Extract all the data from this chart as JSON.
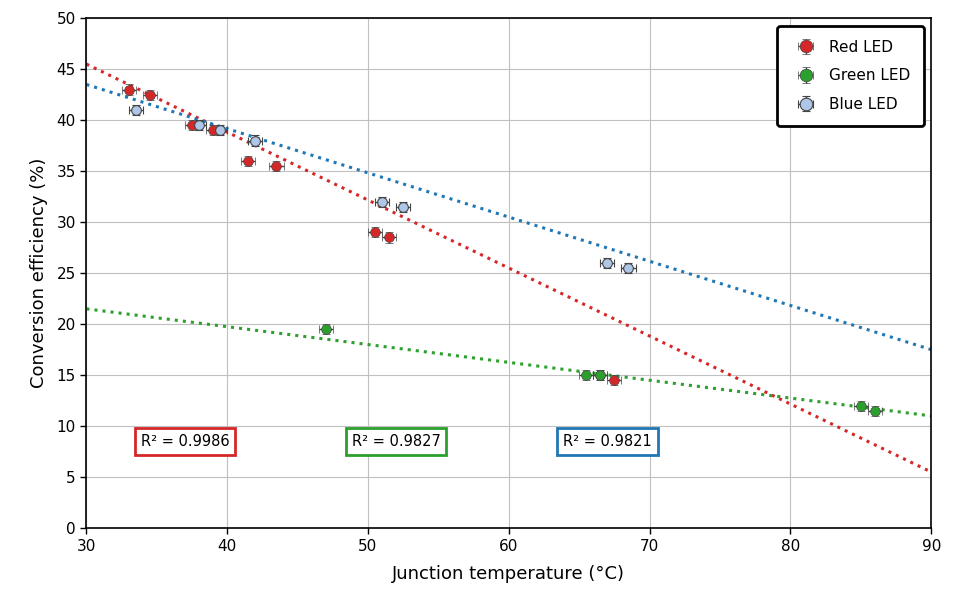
{
  "xlabel": "Junction temperature (°C)",
  "ylabel": "Conversion efficiency (%)",
  "xlim": [
    30,
    90
  ],
  "ylim": [
    0,
    50
  ],
  "xticks": [
    30,
    40,
    50,
    60,
    70,
    80,
    90
  ],
  "yticks": [
    0,
    5,
    10,
    15,
    20,
    25,
    30,
    35,
    40,
    45,
    50
  ],
  "red_x": [
    33.0,
    34.5,
    37.5,
    39.0,
    41.5,
    43.5,
    50.5,
    51.5,
    66.5,
    67.5
  ],
  "red_y": [
    43.0,
    42.5,
    39.5,
    39.0,
    36.0,
    35.5,
    29.0,
    28.5,
    15.0,
    14.5
  ],
  "red_xerr": [
    0.5,
    0.5,
    0.5,
    0.5,
    0.5,
    0.5,
    0.5,
    0.5,
    0.5,
    0.5
  ],
  "red_yerr": [
    0.5,
    0.5,
    0.5,
    0.5,
    0.5,
    0.5,
    0.5,
    0.5,
    0.5,
    0.5
  ],
  "green_x": [
    47.0,
    65.5,
    66.5,
    85.0,
    86.0
  ],
  "green_y": [
    19.5,
    15.0,
    15.0,
    12.0,
    11.5
  ],
  "green_xerr": [
    0.5,
    0.5,
    0.5,
    0.5,
    0.5
  ],
  "green_yerr": [
    0.5,
    0.5,
    0.5,
    0.5,
    0.5
  ],
  "blue_x": [
    33.5,
    38.0,
    39.5,
    42.0,
    51.0,
    52.5,
    67.0,
    68.5
  ],
  "blue_y": [
    41.0,
    39.5,
    39.0,
    38.0,
    32.0,
    31.5,
    26.0,
    25.5
  ],
  "blue_xerr": [
    0.5,
    0.5,
    0.5,
    0.5,
    0.5,
    0.5,
    0.5,
    0.5
  ],
  "blue_yerr": [
    0.5,
    0.5,
    0.5,
    0.5,
    0.5,
    0.5,
    0.5,
    0.5
  ],
  "red_fit_x": [
    30,
    90
  ],
  "red_fit_y": [
    45.5,
    5.5
  ],
  "green_fit_x": [
    30,
    90
  ],
  "green_fit_y": [
    21.5,
    11.0
  ],
  "blue_fit_x": [
    30,
    90
  ],
  "blue_fit_y": [
    43.5,
    17.5
  ],
  "red_color": "#d62728",
  "green_color": "#2ca02c",
  "blue_color": "#1f77b4",
  "r2_red": "R² = 0.9986",
  "r2_green": "R² = 0.9827",
  "r2_blue": "R² = 0.9821",
  "legend_labels": [
    "Red LED",
    "Green LED",
    "Blue LED"
  ],
  "marker_size": 7,
  "errorbar_capsize": 3,
  "dotted_linewidth": 2.2,
  "background_color": "#ffffff",
  "grid_color": "#c0c0c0"
}
